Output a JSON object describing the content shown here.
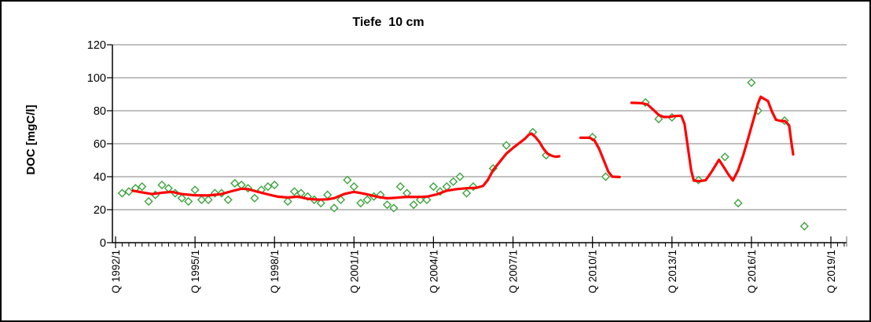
{
  "title": "Tiefe  10 cm",
  "frame": {
    "background": "#ffffff",
    "border_color": "#000000"
  },
  "chart_data": {
    "type": "scatter",
    "title": "Tiefe  10 cm",
    "legend": "none",
    "grid": "horizontal",
    "grid_color": "#808080",
    "axis_color": "#000000",
    "x_axis": {
      "unit": "quarter",
      "range_quarters": [
        0,
        110
      ],
      "minor_tick_step_quarters": 1,
      "label_quarters": [
        0,
        12,
        24,
        36,
        48,
        60,
        72,
        84,
        96,
        108
      ],
      "labels": [
        "Q 1992/1",
        "Q 1995/1",
        "Q 1998/1",
        "Q 2001/1",
        "Q 2004/1",
        "Q 2007/1",
        "Q 2010/1",
        "Q 2013/1",
        "Q 2016/1",
        "Q 2019/1"
      ]
    },
    "y_axis": {
      "label": "DOC [mgC/l]",
      "min": 0,
      "max": 120,
      "tick_step": 20,
      "ticks": [
        0,
        20,
        40,
        60,
        80,
        100,
        120
      ]
    },
    "series": [
      {
        "id": "doc-measurements",
        "type": "scatter",
        "marker": "open-diamond",
        "color": "#3da33d",
        "points_quarter_value": [
          [
            1,
            30
          ],
          [
            2,
            31
          ],
          [
            3,
            33
          ],
          [
            4,
            34
          ],
          [
            5,
            25
          ],
          [
            6,
            29
          ],
          [
            7,
            35
          ],
          [
            8,
            33
          ],
          [
            9,
            30
          ],
          [
            10,
            27
          ],
          [
            11,
            25
          ],
          [
            12,
            32
          ],
          [
            13,
            26
          ],
          [
            14,
            26
          ],
          [
            15,
            30
          ],
          [
            16,
            30
          ],
          [
            17,
            26
          ],
          [
            18,
            36
          ],
          [
            19,
            35
          ],
          [
            20,
            33
          ],
          [
            21,
            27
          ],
          [
            22,
            32
          ],
          [
            23,
            34
          ],
          [
            24,
            35
          ],
          [
            26,
            25
          ],
          [
            27,
            31
          ],
          [
            28,
            30
          ],
          [
            29,
            28
          ],
          [
            30,
            26
          ],
          [
            31,
            24
          ],
          [
            32,
            29
          ],
          [
            33,
            21
          ],
          [
            34,
            26
          ],
          [
            35,
            38
          ],
          [
            36,
            34
          ],
          [
            37,
            24
          ],
          [
            38,
            26
          ],
          [
            39,
            28
          ],
          [
            40,
            29
          ],
          [
            41,
            23
          ],
          [
            42,
            21
          ],
          [
            43,
            34
          ],
          [
            44,
            30
          ],
          [
            45,
            23
          ],
          [
            46,
            26
          ],
          [
            47,
            26
          ],
          [
            48,
            34
          ],
          [
            49,
            31
          ],
          [
            50,
            34
          ],
          [
            51,
            37
          ],
          [
            52,
            40
          ],
          [
            53,
            30
          ],
          [
            54,
            34
          ],
          [
            57,
            45
          ],
          [
            59,
            59
          ],
          [
            63,
            67
          ],
          [
            65,
            53
          ],
          [
            72,
            64
          ],
          [
            74,
            40
          ],
          [
            80,
            85
          ],
          [
            82,
            75
          ],
          [
            84,
            76
          ],
          [
            88,
            38
          ],
          [
            92,
            52
          ],
          [
            94,
            24
          ],
          [
            96,
            97
          ],
          [
            97,
            80
          ],
          [
            101,
            74
          ],
          [
            104,
            10
          ]
        ]
      },
      {
        "id": "doc-trend-line",
        "type": "line",
        "color": "#ff0000",
        "stroke_width": 3.2,
        "segments_quarter_value": [
          [
            [
              2.6,
              31.5
            ],
            [
              4,
              30.5
            ],
            [
              5.5,
              29.5
            ],
            [
              7,
              30.3
            ],
            [
              8.5,
              30.8
            ],
            [
              10,
              29.5
            ],
            [
              12,
              28.7
            ],
            [
              14,
              28.6
            ],
            [
              16,
              29.5
            ],
            [
              17.5,
              31.2
            ],
            [
              19,
              32.7
            ],
            [
              20,
              32.5
            ],
            [
              21.5,
              30.8
            ],
            [
              23,
              29.3
            ],
            [
              24.5,
              27.9
            ],
            [
              26,
              27.4
            ],
            [
              27.5,
              27.9
            ],
            [
              29,
              26.6
            ],
            [
              30.5,
              26.1
            ],
            [
              32,
              26.3
            ],
            [
              33,
              27
            ],
            [
              34.5,
              29.5
            ],
            [
              36,
              30.8
            ],
            [
              37,
              30.1
            ],
            [
              38,
              29.3
            ],
            [
              39.5,
              27.8
            ],
            [
              41,
              26.9
            ],
            [
              42.5,
              27.3
            ],
            [
              44,
              27.8
            ],
            [
              45.5,
              27.7
            ],
            [
              47,
              27.9
            ],
            [
              48.5,
              29.3
            ],
            [
              50,
              31.5
            ],
            [
              51.5,
              32.5
            ],
            [
              53,
              33
            ],
            [
              54.5,
              33.3
            ],
            [
              55.5,
              34.5
            ],
            [
              56.2,
              38
            ],
            [
              57,
              44
            ],
            [
              58,
              49
            ],
            [
              59,
              54
            ],
            [
              60,
              57.5
            ],
            [
              61,
              60.5
            ],
            [
              61.8,
              63
            ],
            [
              62.4,
              65.5
            ],
            [
              62.8,
              66.2
            ],
            [
              63.4,
              64
            ],
            [
              64,
              61
            ],
            [
              64.6,
              57
            ],
            [
              65.2,
              54
            ],
            [
              65.8,
              52.8
            ],
            [
              66.4,
              52.1
            ],
            [
              67,
              52.4
            ]
          ],
          [
            [
              70.2,
              63.6
            ],
            [
              71.6,
              63.6
            ],
            [
              72.3,
              62
            ],
            [
              73,
              57
            ],
            [
              73.7,
              50
            ],
            [
              74.4,
              43
            ],
            [
              75,
              40
            ],
            [
              76.1,
              39.8
            ]
          ],
          [
            [
              77.9,
              84.8
            ],
            [
              79.4,
              84.6
            ],
            [
              80.3,
              83.8
            ],
            [
              81.2,
              80.5
            ],
            [
              82,
              77.5
            ],
            [
              82.8,
              76.2
            ],
            [
              83.6,
              76.3
            ],
            [
              84.5,
              76.8
            ],
            [
              85.4,
              77
            ],
            [
              85.9,
              72
            ],
            [
              86.4,
              58
            ],
            [
              86.9,
              44
            ],
            [
              87.3,
              37.6
            ],
            [
              88.2,
              37.3
            ],
            [
              89.1,
              37.9
            ],
            [
              89.9,
              42.5
            ],
            [
              90.6,
              47
            ],
            [
              91.1,
              50.3
            ],
            [
              91.8,
              46
            ],
            [
              92.5,
              41.5
            ],
            [
              93.2,
              37.7
            ],
            [
              94,
              44
            ],
            [
              94.8,
              53.5
            ],
            [
              95.6,
              64.5
            ],
            [
              96.4,
              76
            ],
            [
              97,
              84.5
            ],
            [
              97.4,
              88.5
            ],
            [
              97.9,
              87.3
            ],
            [
              98.5,
              85.8
            ],
            [
              99.1,
              79.5
            ],
            [
              99.7,
              74.5
            ],
            [
              100.4,
              73.8
            ],
            [
              101.1,
              73.7
            ],
            [
              101.7,
              71
            ],
            [
              102,
              62
            ],
            [
              102.3,
              53.5
            ]
          ]
        ]
      }
    ]
  }
}
